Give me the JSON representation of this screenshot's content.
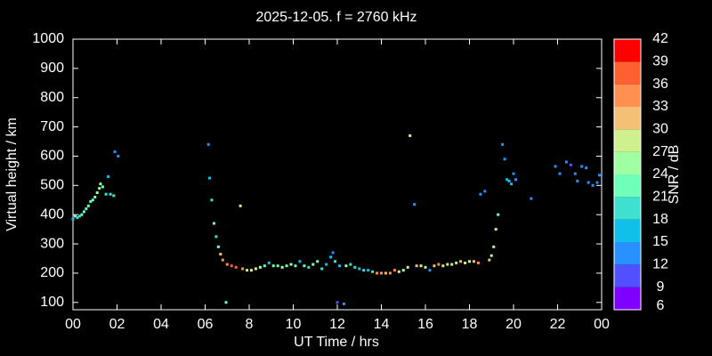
{
  "chart_data": {
    "type": "scatter",
    "title": "2025-12-05. f = 2760 kHz",
    "x_label": "UT Time / hrs",
    "y_label": "Virtual height / km",
    "xlim": [
      0,
      24
    ],
    "xticks": [
      {
        "value": 0,
        "label": "00"
      },
      {
        "value": 2,
        "label": "02"
      },
      {
        "value": 4,
        "label": "04"
      },
      {
        "value": 6,
        "label": "06"
      },
      8,
      10,
      12,
      14,
      16,
      18,
      20,
      22,
      {
        "value": 24,
        "label": "00"
      }
    ],
    "ylim": [
      75,
      1000
    ],
    "yticks": [
      100,
      200,
      300,
      400,
      500,
      600,
      700,
      800,
      900,
      1000
    ],
    "colorbar": {
      "label": "SNR / dB",
      "levels": [
        6,
        9,
        12,
        15,
        18,
        21,
        24,
        27,
        30,
        33,
        36,
        39,
        42
      ],
      "colors": [
        "#8000ff",
        "#5050ff",
        "#2890ff",
        "#10c0e8",
        "#40e0d0",
        "#70ffb8",
        "#a0ffa0",
        "#d0f090",
        "#f4c078",
        "#ff9050",
        "#ff6030",
        "#ff0000"
      ]
    },
    "x": [
      0.0,
      0.1,
      0.2,
      0.3,
      0.4,
      0.5,
      0.6,
      0.7,
      0.8,
      0.9,
      1.0,
      1.1,
      1.2,
      1.25,
      1.35,
      1.5,
      1.6,
      1.7,
      1.85,
      1.9,
      2.05,
      6.15,
      6.2,
      6.3,
      6.4,
      6.5,
      6.6,
      6.7,
      6.8,
      6.95,
      7.0,
      7.2,
      7.4,
      7.6,
      7.7,
      7.9,
      8.1,
      8.3,
      8.5,
      8.7,
      8.9,
      9.1,
      9.3,
      9.5,
      9.7,
      9.9,
      10.1,
      10.3,
      10.5,
      10.7,
      10.9,
      11.1,
      11.3,
      11.5,
      11.7,
      11.8,
      11.9,
      12.0,
      12.1,
      12.3,
      12.4,
      12.6,
      12.8,
      13.0,
      13.2,
      13.4,
      13.6,
      13.8,
      14.0,
      14.2,
      14.4,
      14.6,
      14.8,
      15.0,
      15.2,
      15.3,
      15.5,
      15.6,
      15.8,
      16.0,
      16.2,
      16.4,
      16.6,
      16.8,
      17.0,
      17.2,
      17.4,
      17.6,
      17.8,
      18.0,
      18.2,
      18.4,
      18.5,
      18.7,
      18.9,
      19.0,
      19.1,
      19.2,
      19.3,
      19.5,
      19.6,
      19.7,
      19.8,
      19.9,
      20.0,
      20.1,
      20.8,
      21.9,
      22.1,
      22.4,
      22.6,
      22.8,
      22.9,
      23.1,
      23.3,
      23.4,
      23.6,
      23.8,
      23.9
    ],
    "y": [
      385,
      395,
      390,
      395,
      400,
      410,
      420,
      430,
      445,
      450,
      460,
      475,
      490,
      505,
      495,
      470,
      530,
      470,
      465,
      615,
      600,
      640,
      525,
      450,
      370,
      325,
      290,
      265,
      245,
      100,
      230,
      225,
      220,
      430,
      215,
      210,
      210,
      215,
      220,
      225,
      235,
      225,
      225,
      220,
      225,
      230,
      225,
      240,
      225,
      220,
      230,
      240,
      215,
      230,
      255,
      270,
      240,
      100,
      225,
      95,
      225,
      230,
      220,
      215,
      210,
      210,
      205,
      200,
      200,
      200,
      200,
      210,
      205,
      210,
      220,
      670,
      435,
      225,
      225,
      220,
      210,
      225,
      230,
      225,
      230,
      230,
      235,
      240,
      235,
      240,
      240,
      235,
      470,
      480,
      245,
      260,
      290,
      350,
      400,
      640,
      590,
      520,
      515,
      505,
      540,
      520,
      455,
      565,
      540,
      580,
      570,
      540,
      515,
      565,
      560,
      510,
      500,
      510,
      535
    ],
    "snr": [
      15,
      21,
      18,
      18,
      21,
      21,
      21,
      21,
      21,
      21,
      21,
      24,
      24,
      24,
      21,
      18,
      15,
      18,
      18,
      12,
      12,
      12,
      15,
      18,
      21,
      18,
      21,
      30,
      33,
      21,
      33,
      36,
      36,
      27,
      33,
      27,
      27,
      27,
      24,
      21,
      15,
      21,
      21,
      24,
      21,
      24,
      21,
      15,
      21,
      18,
      24,
      21,
      18,
      15,
      15,
      12,
      18,
      9,
      15,
      12,
      24,
      18,
      18,
      15,
      18,
      15,
      18,
      33,
      33,
      30,
      33,
      33,
      27,
      24,
      27,
      27,
      12,
      30,
      27,
      24,
      12,
      30,
      33,
      27,
      27,
      27,
      24,
      30,
      27,
      27,
      30,
      33,
      12,
      12,
      30,
      24,
      24,
      27,
      21,
      12,
      12,
      15,
      15,
      15,
      12,
      12,
      12,
      12,
      12,
      12,
      9,
      12,
      12,
      12,
      12,
      12,
      12,
      12,
      12
    ]
  }
}
